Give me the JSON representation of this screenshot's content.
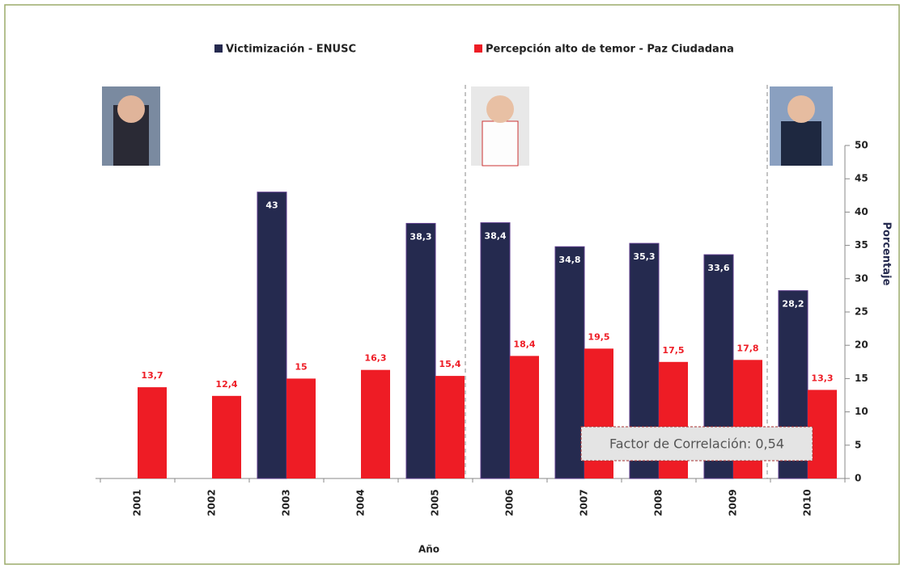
{
  "chart_data": {
    "type": "bar",
    "categories": [
      "2001",
      "2002",
      "2003",
      "2004",
      "2005",
      "2006",
      "2007",
      "2008",
      "2009",
      "2010"
    ],
    "series": [
      {
        "name": "Victimización - ENUSC",
        "color": "#252a4f",
        "values": [
          null,
          null,
          43,
          null,
          38.3,
          38.4,
          34.8,
          35.3,
          33.6,
          28.2
        ],
        "value_labels": [
          null,
          null,
          "43",
          null,
          "38,3",
          "38,4",
          "34,8",
          "35,3",
          "33,6",
          "28,2"
        ]
      },
      {
        "name": "Percepción alto de temor - Paz Ciudadana",
        "color": "#ee1c25",
        "values": [
          13.7,
          12.4,
          15,
          16.3,
          15.4,
          18.4,
          19.5,
          17.5,
          17.8,
          13.3
        ],
        "value_labels": [
          "13,7",
          "12,4",
          "15",
          "16,3",
          "15,4",
          "18,4",
          "19,5",
          "17,5",
          "17,8",
          "13,3"
        ]
      }
    ],
    "ylim": [
      0,
      50
    ],
    "yticks": [
      0,
      5,
      10,
      15,
      20,
      25,
      30,
      35,
      40,
      45,
      50
    ],
    "x_label": "Año",
    "y_label": "Porcentaje",
    "annotation": "Factor de Correlación: 0,54"
  }
}
